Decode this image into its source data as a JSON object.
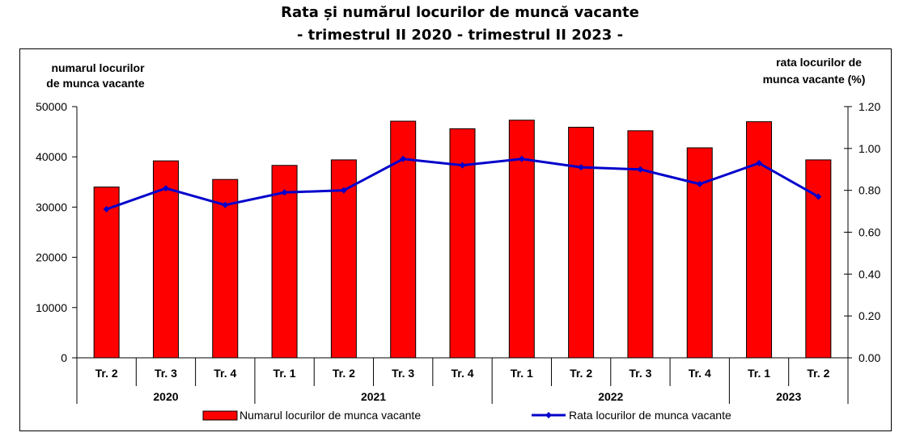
{
  "title_line1": "Rata și numărul locurilor de muncă vacante",
  "title_line2": "- trimestrul II 2020 - trimestrul II 2023 -",
  "colors": {
    "bar": "#ff0000",
    "line": "#0000cc"
  },
  "chart_data": {
    "type": "bar+line",
    "categories": [
      "Tr. 2",
      "Tr. 3",
      "Tr. 4",
      "Tr. 1",
      "Tr. 2",
      "Tr. 3",
      "Tr. 4",
      "Tr. 1",
      "Tr. 2",
      "Tr. 3",
      "Tr. 4",
      "Tr. 1",
      "Tr. 2"
    ],
    "years": [
      {
        "label": "2020",
        "count": 3
      },
      {
        "label": "2021",
        "count": 4
      },
      {
        "label": "2022",
        "count": 4
      },
      {
        "label": "2023",
        "count": 2
      }
    ],
    "left_axis": {
      "label_line1": "numarul locurilor",
      "label_line2": "de munca  vacante",
      "ticks": [
        "0",
        "10000",
        "20000",
        "30000",
        "40000",
        "50000"
      ],
      "ylim": [
        0,
        50000
      ]
    },
    "right_axis": {
      "label_line1": "rata locurilor  de",
      "label_line2": "munca vacante (%)",
      "ticks": [
        "0.00",
        "0.20",
        "0.40",
        "0.60",
        "0.80",
        "1.00",
        "1.20"
      ],
      "ylim": [
        0,
        1.2
      ]
    },
    "series": [
      {
        "name": "Numarul locurilor de munca vacante",
        "type": "bar",
        "axis": "left",
        "values": [
          34000,
          39200,
          35500,
          38300,
          39400,
          47100,
          45600,
          47300,
          45900,
          45200,
          41800,
          47000,
          39400
        ]
      },
      {
        "name": "Rata locurilor de munca vacante",
        "type": "line",
        "axis": "right",
        "values": [
          0.71,
          0.81,
          0.73,
          0.79,
          0.8,
          0.95,
          0.92,
          0.95,
          0.91,
          0.9,
          0.83,
          0.93,
          0.77
        ]
      }
    ]
  }
}
